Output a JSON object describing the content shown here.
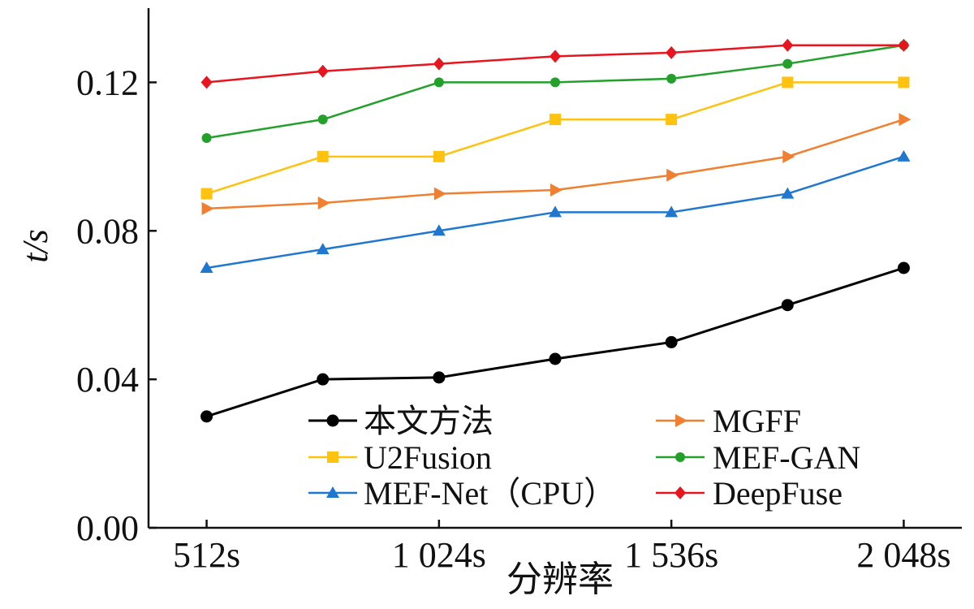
{
  "chart_data": {
    "type": "line",
    "title": "",
    "xlabel": "分辨率",
    "ylabel": "t/s",
    "x_ticks": [
      {
        "x": 1,
        "label": "512s"
      },
      {
        "x": 3,
        "label": "1 024s"
      },
      {
        "x": 5,
        "label": "1 536s"
      },
      {
        "x": 7,
        "label": "2 048s"
      }
    ],
    "x": [
      1,
      2,
      3,
      4,
      5,
      6,
      7
    ],
    "xlim": [
      0.5,
      7.5
    ],
    "ylim": [
      0,
      0.14
    ],
    "y_ticks": [
      0.0,
      0.04,
      0.08,
      0.12
    ],
    "y_tick_labels": [
      "0.00",
      "0.04",
      "0.08",
      "0.12"
    ],
    "grid": false,
    "legend_position": "bottom-center, two columns",
    "series": [
      {
        "name": "本文方法",
        "color": "#000000",
        "marker": "circle",
        "values": [
          0.03,
          0.04,
          0.0405,
          0.0455,
          0.05,
          0.06,
          0.07
        ]
      },
      {
        "name": "U2Fusion",
        "color": "#FFC20E",
        "marker": "square",
        "values": [
          0.09,
          0.1,
          0.1,
          0.11,
          0.11,
          0.12,
          0.12
        ]
      },
      {
        "name": "MEF-Net（CPU）",
        "color": "#1F77D0",
        "marker": "triangle-up",
        "values": [
          0.07,
          0.075,
          0.08,
          0.085,
          0.085,
          0.09,
          0.1
        ]
      },
      {
        "name": "MGFF",
        "color": "#F08030",
        "marker": "triangle-right",
        "values": [
          0.086,
          0.0875,
          0.09,
          0.091,
          0.095,
          0.1,
          0.11
        ]
      },
      {
        "name": "MEF-GAN",
        "color": "#22A02A",
        "marker": "circle-small",
        "values": [
          0.105,
          0.11,
          0.12,
          0.12,
          0.121,
          0.125,
          0.13
        ]
      },
      {
        "name": "DeepFuse",
        "color": "#E8141E",
        "marker": "diamond",
        "values": [
          0.12,
          0.123,
          0.125,
          0.127,
          0.128,
          0.13,
          0.13
        ]
      }
    ]
  }
}
